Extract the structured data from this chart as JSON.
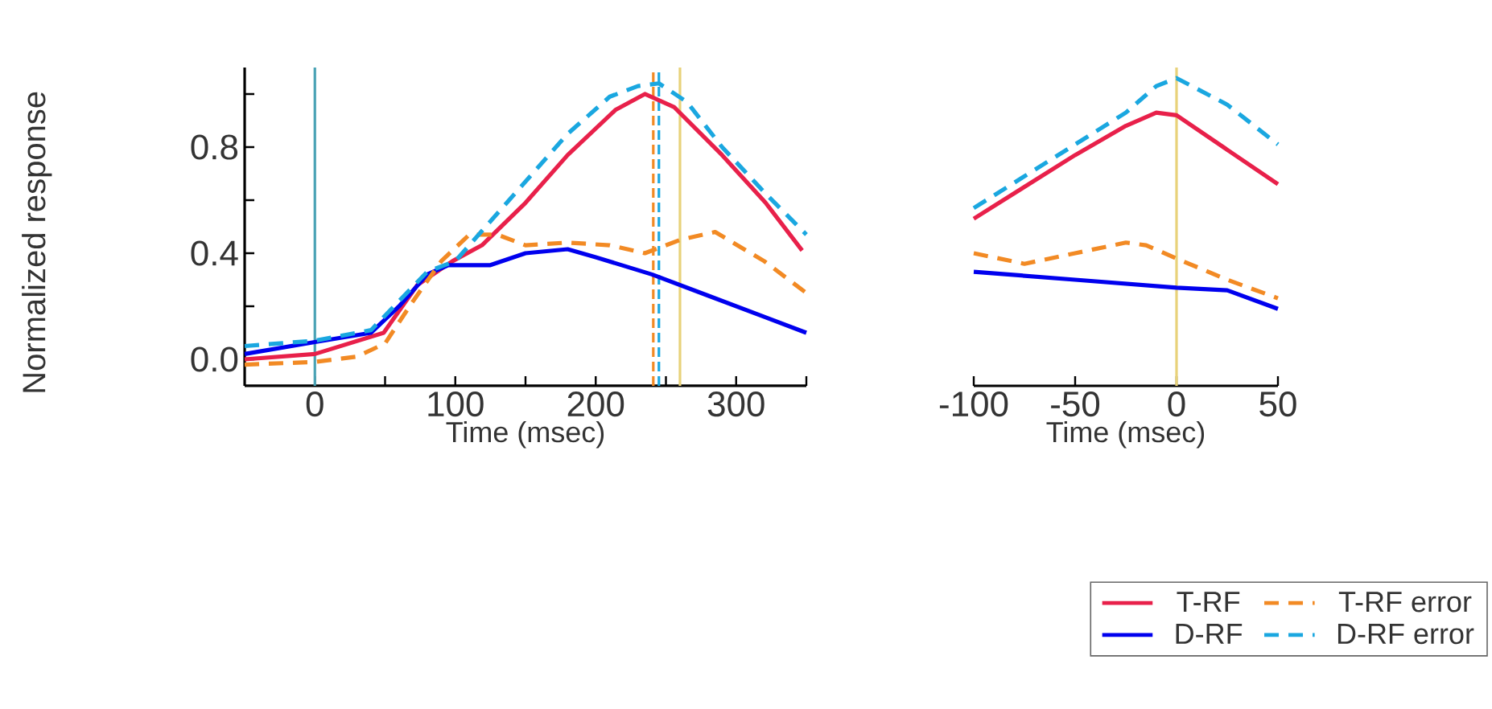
{
  "chart_data": [
    {
      "type": "line",
      "xlabel": "Time  (msec)",
      "ylabel": "Normalized response",
      "xlim": [
        -50,
        350
      ],
      "ylim": [
        -0.1,
        1.1
      ],
      "xticks": [
        {
          "value": 0,
          "label": "0"
        },
        {
          "value": 50,
          "label": null
        },
        {
          "value": 100,
          "label": "100"
        },
        {
          "value": 150,
          "label": null
        },
        {
          "value": 200,
          "label": "200"
        },
        {
          "value": 250,
          "label": null
        },
        {
          "value": 300,
          "label": "300"
        },
        {
          "value": 350,
          "label": null
        }
      ],
      "yticks": [
        {
          "value": 0,
          "label": "0.0"
        },
        {
          "value": 0.2,
          "label": null
        },
        {
          "value": 0.4,
          "label": "0.4"
        },
        {
          "value": 0.6,
          "label": null
        },
        {
          "value": 0.8,
          "label": "0.8"
        },
        {
          "value": 1.0,
          "label": null
        }
      ],
      "series": [
        {
          "color": "#e8204a",
          "line_style": "solid",
          "x": [
            -50,
            0,
            49,
            73,
            98,
            119,
            150,
            180,
            214,
            235,
            256,
            290,
            321,
            347
          ],
          "values": [
            0.0,
            0.02,
            0.1,
            0.28,
            0.37,
            0.43,
            0.59,
            0.77,
            0.94,
            1.0,
            0.95,
            0.77,
            0.59,
            0.41
          ]
        },
        {
          "color": "#0000ee",
          "line_style": "solid",
          "x": [
            -50,
            0,
            40,
            60,
            80,
            95,
            100,
            125,
            150,
            180,
            200,
            240,
            280,
            320,
            350
          ],
          "values": [
            0.02,
            0.065,
            0.1,
            0.2,
            0.32,
            0.355,
            0.355,
            0.355,
            0.4,
            0.415,
            0.385,
            0.32,
            0.24,
            0.16,
            0.1
          ]
        },
        {
          "color": "#f28a24",
          "line_style": "dashed",
          "x": [
            -50,
            0,
            30,
            50,
            70,
            90,
            110,
            130,
            150,
            180,
            210,
            235,
            260,
            285,
            320,
            350
          ],
          "values": [
            -0.02,
            -0.01,
            0.01,
            0.06,
            0.22,
            0.37,
            0.47,
            0.47,
            0.43,
            0.44,
            0.43,
            0.4,
            0.45,
            0.48,
            0.37,
            0.25
          ]
        },
        {
          "color": "#1aa7e0",
          "line_style": "dashed",
          "x": [
            -50,
            0,
            40,
            60,
            80,
            100,
            120,
            150,
            180,
            210,
            230,
            245,
            265,
            290,
            320,
            350
          ],
          "values": [
            0.05,
            0.07,
            0.11,
            0.22,
            0.33,
            0.37,
            0.49,
            0.67,
            0.85,
            0.99,
            1.03,
            1.04,
            0.97,
            0.8,
            0.63,
            0.47
          ]
        }
      ],
      "ref_lines": [
        {
          "axis": "x",
          "value": 0,
          "color": "#4aa3b5",
          "line_style": "solid"
        },
        {
          "axis": "x",
          "value": 241,
          "color": "#f28a24",
          "line_style": "dashed"
        },
        {
          "axis": "x",
          "value": 245,
          "color": "#1aa7e0",
          "line_style": "dashed"
        },
        {
          "axis": "x",
          "value": 260,
          "color": "#e8d27a",
          "line_style": "solid"
        }
      ]
    },
    {
      "type": "line",
      "xlabel": "Time  (msec)",
      "xlim": [
        -100,
        50
      ],
      "ylim": [
        -0.1,
        1.1
      ],
      "tick_labels": "x",
      "legend": "bottom right",
      "xticks": [
        -100,
        -50,
        0,
        50
      ],
      "series": [
        {
          "name": "T-RF",
          "color": "#e8204a",
          "line_style": "solid",
          "x": [
            -100,
            -75,
            -50,
            -25,
            -10,
            0,
            25,
            50
          ],
          "values": [
            0.53,
            0.65,
            0.77,
            0.88,
            0.93,
            0.92,
            0.79,
            0.66
          ]
        },
        {
          "name": "D-RF",
          "color": "#0000ee",
          "line_style": "solid",
          "x": [
            -100,
            -50,
            0,
            25,
            50
          ],
          "values": [
            0.33,
            0.3,
            0.27,
            0.26,
            0.19
          ]
        },
        {
          "name": "T-RF error",
          "color": "#f28a24",
          "line_style": "dashed",
          "x": [
            -100,
            -75,
            -50,
            -25,
            -15,
            0,
            25,
            50
          ],
          "values": [
            0.4,
            0.36,
            0.4,
            0.44,
            0.43,
            0.38,
            0.3,
            0.23
          ]
        },
        {
          "name": "D-RF error",
          "color": "#1aa7e0",
          "line_style": "dashed",
          "x": [
            -100,
            -75,
            -50,
            -25,
            -10,
            0,
            25,
            50
          ],
          "values": [
            0.57,
            0.69,
            0.81,
            0.93,
            1.03,
            1.06,
            0.96,
            0.81
          ]
        }
      ],
      "ref_lines": [
        {
          "axis": "x",
          "value": 0,
          "color": "#e8d27a",
          "line_style": "solid"
        }
      ]
    }
  ]
}
